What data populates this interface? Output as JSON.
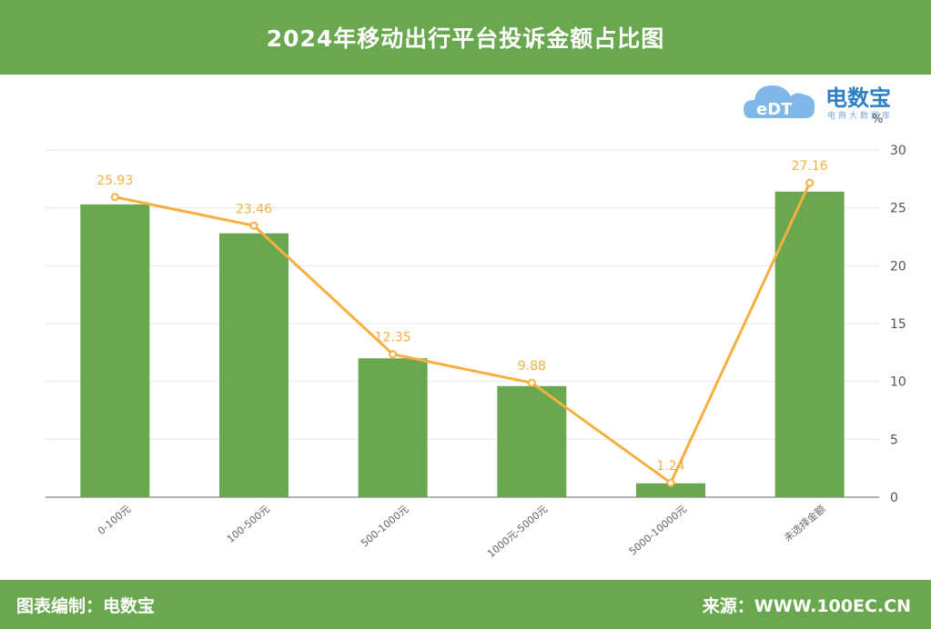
{
  "header": {
    "title": "2024年移动出行平台投诉金额占比图"
  },
  "logo": {
    "brand_cn": "电数宝",
    "brand_sub": "电商大数据库",
    "brand_mark": "eDT"
  },
  "footer": {
    "left": "图表编制：电数宝",
    "right": "来源：WWW.100EC.CN"
  },
  "chart_data": {
    "type": "bar",
    "title": "2024年移动出行平台投诉金额占比图",
    "categories": [
      "0-100元",
      "100-500元",
      "500-1000元",
      "1000元-5000元",
      "5000-10000元",
      "未选择金额"
    ],
    "series": [
      {
        "type": "bar",
        "values": [
          25.3,
          22.8,
          12.0,
          9.6,
          1.2,
          26.4
        ]
      },
      {
        "type": "line",
        "values": [
          25.93,
          23.46,
          12.35,
          9.88,
          1.24,
          27.16
        ]
      }
    ],
    "data_labels": [
      "25.93",
      "23.46",
      "12.35",
      "9.88",
      "1.24",
      "27.16"
    ],
    "y_axis": {
      "position": "right",
      "unit": "%",
      "ylim": [
        0,
        30
      ],
      "ticks": [
        "0",
        "5",
        "10",
        "15",
        "20",
        "25",
        "30"
      ]
    },
    "grid": true,
    "colors": {
      "bar": "#6aa84f",
      "line": "#f5b041",
      "header": "#6aa84f",
      "grid": "#e6e6e6"
    }
  }
}
